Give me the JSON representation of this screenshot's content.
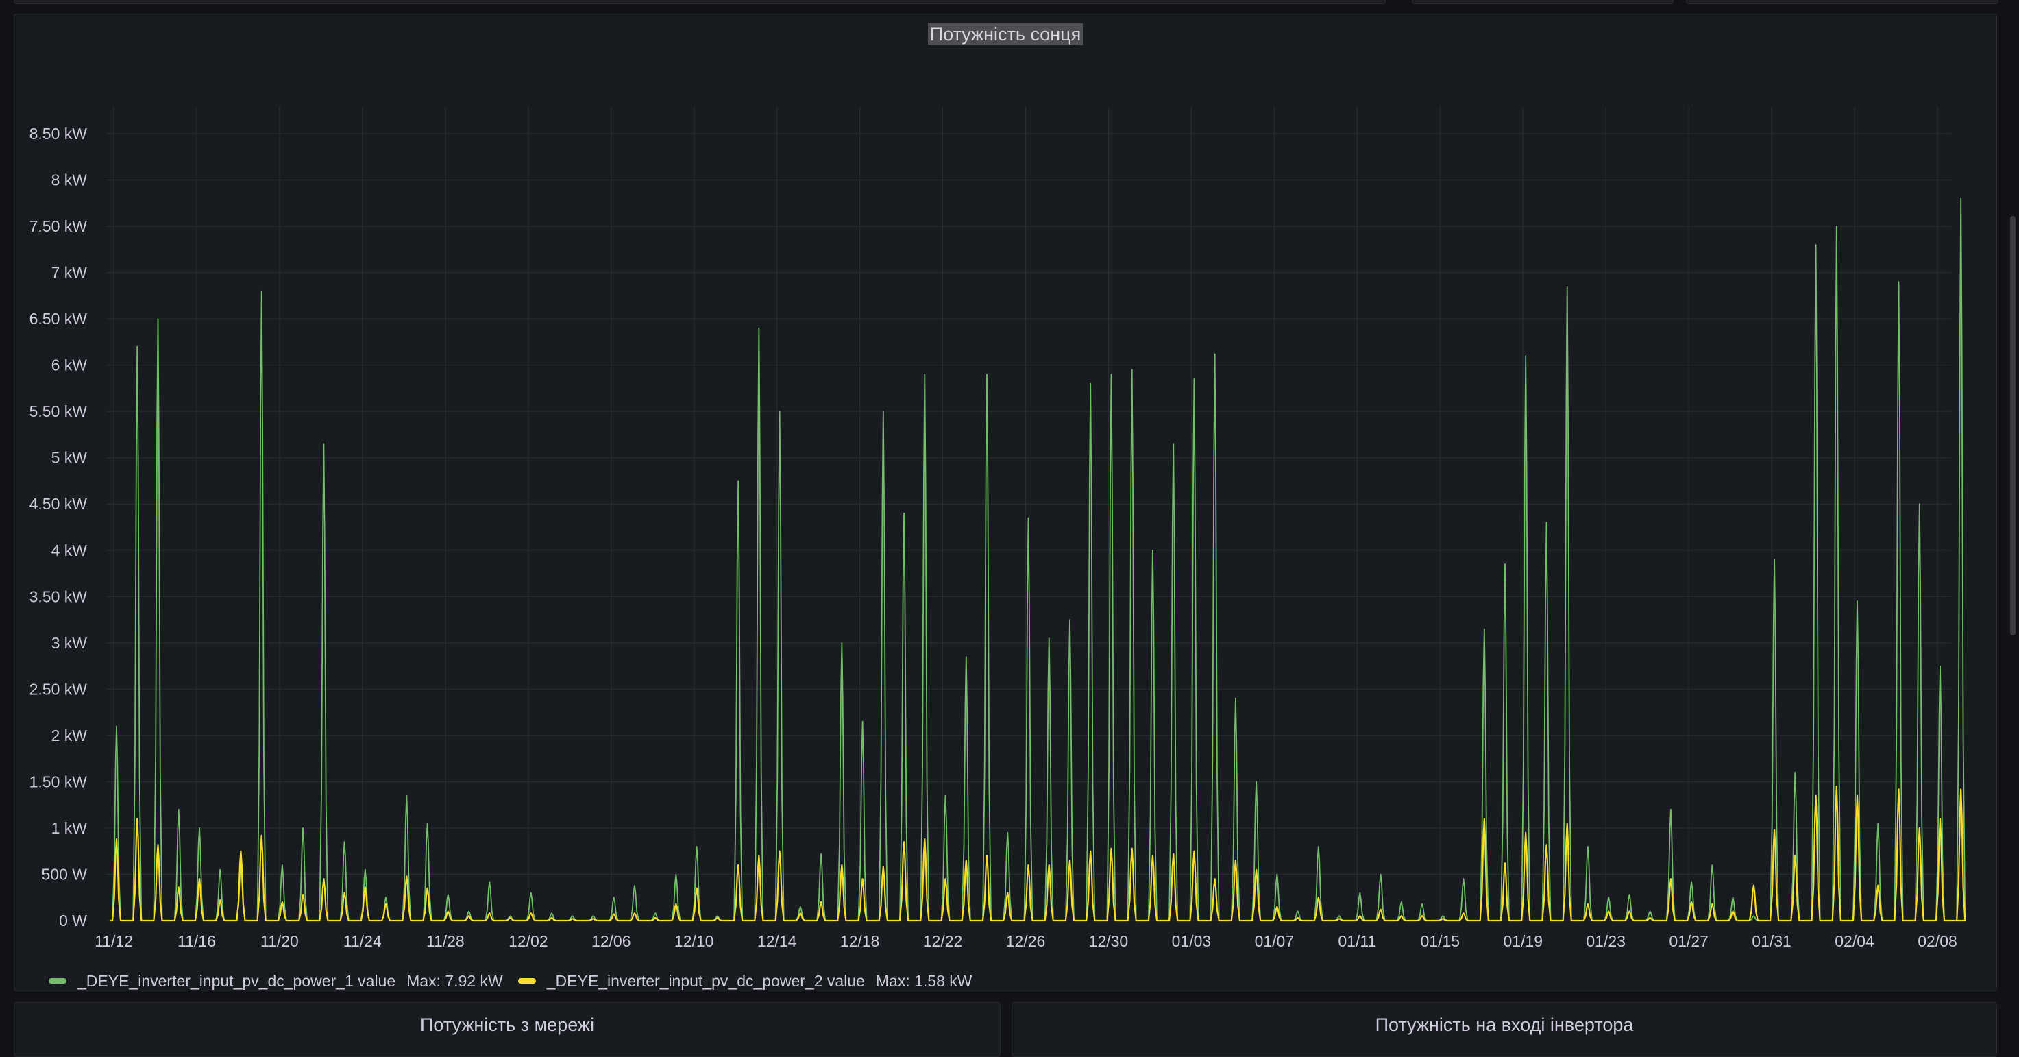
{
  "panels": {
    "main": {
      "title": "Потужність сонця"
    },
    "grid": {
      "title": "Потужність з мережі"
    },
    "inverter": {
      "title": "Потужність на вході інвертора"
    }
  },
  "chart_data": {
    "type": "line",
    "title": "Потужність сонця",
    "xlabel": "",
    "ylabel": "",
    "ylim": [
      0,
      8.6
    ],
    "y_unit": "kW",
    "y_ticks": [
      "0 W",
      "500 W",
      "1 kW",
      "1.50 kW",
      "2 kW",
      "2.50 kW",
      "3 kW",
      "3.50 kW",
      "4 kW",
      "4.50 kW",
      "5 kW",
      "5.50 kW",
      "6 kW",
      "6.50 kW",
      "7 kW",
      "7.50 kW",
      "8 kW",
      "8.50 kW"
    ],
    "x_ticks": [
      "11/12",
      "11/16",
      "11/20",
      "11/24",
      "11/28",
      "12/02",
      "12/06",
      "12/10",
      "12/14",
      "12/18",
      "12/22",
      "12/26",
      "12/30",
      "01/03",
      "01/07",
      "01/11",
      "01/15",
      "01/19",
      "01/23",
      "01/27",
      "01/31",
      "02/04",
      "02/08"
    ],
    "x": [
      "11/12",
      "11/13",
      "11/14",
      "11/15",
      "11/16",
      "11/17",
      "11/18",
      "11/19",
      "11/20",
      "11/21",
      "11/22",
      "11/23",
      "11/24",
      "11/25",
      "11/26",
      "11/27",
      "11/28",
      "11/29",
      "11/30",
      "12/01",
      "12/02",
      "12/03",
      "12/04",
      "12/05",
      "12/06",
      "12/07",
      "12/08",
      "12/09",
      "12/10",
      "12/11",
      "12/12",
      "12/13",
      "12/14",
      "12/15",
      "12/16",
      "12/17",
      "12/18",
      "12/19",
      "12/20",
      "12/21",
      "12/22",
      "12/23",
      "12/24",
      "12/25",
      "12/26",
      "12/27",
      "12/28",
      "12/29",
      "12/30",
      "12/31",
      "01/01",
      "01/02",
      "01/03",
      "01/04",
      "01/05",
      "01/06",
      "01/07",
      "01/08",
      "01/09",
      "01/10",
      "01/11",
      "01/12",
      "01/13",
      "01/14",
      "01/15",
      "01/16",
      "01/17",
      "01/18",
      "01/19",
      "01/20",
      "01/21",
      "01/22",
      "01/23",
      "01/24",
      "01/25",
      "01/26",
      "01/27",
      "01/28",
      "01/29",
      "01/30",
      "01/31",
      "02/01",
      "02/02",
      "02/03",
      "02/04",
      "02/05",
      "02/06",
      "02/07",
      "02/08",
      "02/09"
    ],
    "series": [
      {
        "name": "_DEYE_inverter_input_pv_dc_power_1 value",
        "color": "#73bf69",
        "max_label": "Max: 7.92 kW",
        "values": [
          2.1,
          6.2,
          6.5,
          1.2,
          1.0,
          0.55,
          0.6,
          6.8,
          0.6,
          1.0,
          5.15,
          0.85,
          0.55,
          0.25,
          1.35,
          1.05,
          0.28,
          0.1,
          0.42,
          0.05,
          0.3,
          0.08,
          0.05,
          0.05,
          0.25,
          0.38,
          0.08,
          0.5,
          0.8,
          0.05,
          4.75,
          6.4,
          5.5,
          0.15,
          0.72,
          3.0,
          2.15,
          5.5,
          4.4,
          5.9,
          1.35,
          2.85,
          5.9,
          0.95,
          4.35,
          3.05,
          3.25,
          5.8,
          5.9,
          5.95,
          4.0,
          5.15,
          5.85,
          6.12,
          2.4,
          1.5,
          0.5,
          0.1,
          0.8,
          0.05,
          0.3,
          0.5,
          0.2,
          0.18,
          0.05,
          0.45,
          3.15,
          3.85,
          6.1,
          4.3,
          6.85,
          0.8,
          0.25,
          0.28,
          0.1,
          1.2,
          0.42,
          0.6,
          0.25,
          0.05,
          3.9,
          1.6,
          7.3,
          7.5,
          3.45,
          1.05,
          6.9,
          4.5,
          2.75,
          7.8
        ]
      },
      {
        "name": "_DEYE_inverter_input_pv_dc_power_2 value",
        "color": "#fade2a",
        "max_label": "Max: 1.58 kW",
        "values": [
          0.88,
          1.1,
          0.82,
          0.36,
          0.45,
          0.22,
          0.75,
          0.92,
          0.2,
          0.28,
          0.45,
          0.3,
          0.36,
          0.18,
          0.48,
          0.35,
          0.1,
          0.05,
          0.08,
          0.03,
          0.08,
          0.03,
          0.02,
          0.02,
          0.07,
          0.08,
          0.03,
          0.18,
          0.35,
          0.03,
          0.6,
          0.7,
          0.75,
          0.08,
          0.2,
          0.6,
          0.45,
          0.58,
          0.85,
          0.88,
          0.45,
          0.65,
          0.7,
          0.3,
          0.6,
          0.6,
          0.65,
          0.75,
          0.78,
          0.78,
          0.7,
          0.72,
          0.75,
          0.45,
          0.65,
          0.55,
          0.15,
          0.03,
          0.25,
          0.02,
          0.05,
          0.12,
          0.05,
          0.05,
          0.02,
          0.08,
          1.1,
          0.62,
          0.95,
          0.82,
          1.05,
          0.18,
          0.1,
          0.1,
          0.03,
          0.45,
          0.2,
          0.18,
          0.1,
          0.38,
          0.98,
          0.7,
          1.35,
          1.45,
          1.35,
          0.38,
          1.42,
          1.0,
          1.1,
          1.42
        ]
      }
    ],
    "legend_position": "bottom-left",
    "grid": true
  }
}
